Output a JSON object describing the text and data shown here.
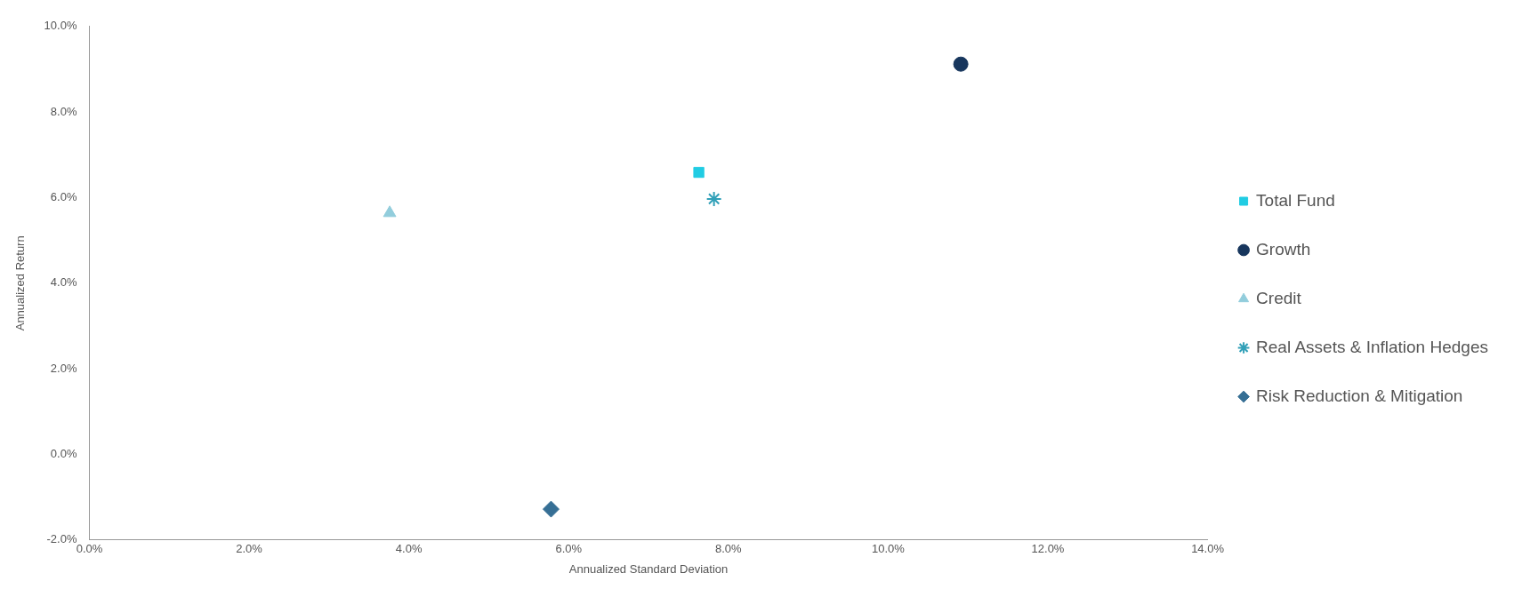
{
  "chart_data": {
    "type": "scatter",
    "xlabel": "Annualized Standard Deviation",
    "ylabel": "Annualized Return",
    "xlim": [
      0,
      14
    ],
    "ylim": [
      -2,
      10
    ],
    "xticks": [
      {
        "value": 0,
        "label": "0.0%"
      },
      {
        "value": 2,
        "label": "2.0%"
      },
      {
        "value": 4,
        "label": "4.0%"
      },
      {
        "value": 6,
        "label": "6.0%"
      },
      {
        "value": 8,
        "label": "8.0%"
      },
      {
        "value": 10,
        "label": "10.0%"
      },
      {
        "value": 12,
        "label": "12.0%"
      },
      {
        "value": 14,
        "label": "14.0%"
      }
    ],
    "yticks": [
      {
        "value": -2,
        "label": "-2.0%"
      },
      {
        "value": 0,
        "label": "0.0%"
      },
      {
        "value": 2,
        "label": "2.0%"
      },
      {
        "value": 4,
        "label": "4.0%"
      },
      {
        "value": 6,
        "label": "6.0%"
      },
      {
        "value": 8,
        "label": "8.0%"
      },
      {
        "value": 10,
        "label": "10.0%"
      }
    ],
    "grid": false,
    "legend": "right",
    "series": [
      {
        "name": "Total Fund",
        "color": "#21cce3",
        "marker": "square",
        "x": [
          7.63
        ],
        "values": [
          6.59
        ]
      },
      {
        "name": "Growth",
        "color": "#17365d",
        "marker": "circle",
        "x": [
          10.91
        ],
        "values": [
          9.12
        ]
      },
      {
        "name": "Credit",
        "color": "#92cddc",
        "marker": "triangle",
        "x": [
          3.76
        ],
        "values": [
          5.64
        ]
      },
      {
        "name": "Real Assets & Inflation Hedges",
        "color": "#31a0b8",
        "marker": "cross",
        "x": [
          7.82
        ],
        "values": [
          5.97
        ]
      },
      {
        "name": "Risk Reduction & Mitigation",
        "color": "#366f95",
        "marker": "diamond",
        "x": [
          5.78
        ],
        "values": [
          -1.28
        ]
      }
    ]
  }
}
